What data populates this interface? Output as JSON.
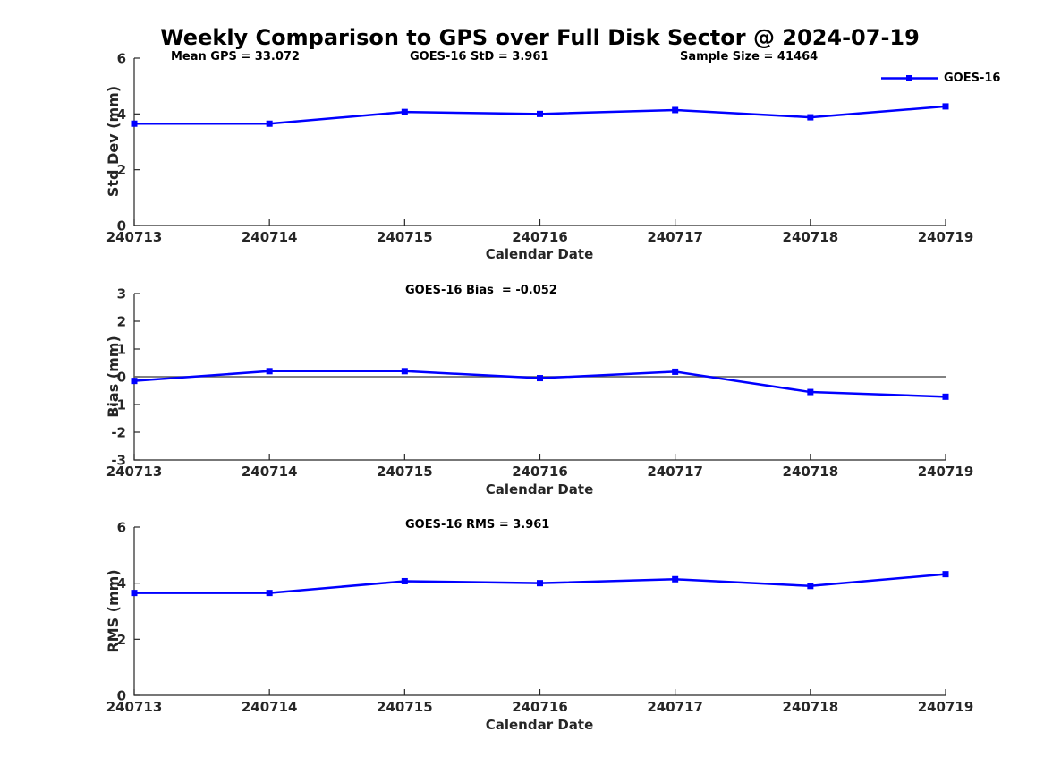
{
  "figure": {
    "title": "Weekly Comparison to GPS over Full Disk Sector @ 2024-07-19",
    "legend": {
      "label": "GOES-16",
      "position": "top-right"
    },
    "colors": {
      "line": "#0000ff",
      "axis": "#262626",
      "zero_line": "#595959",
      "background": "#ffffff"
    }
  },
  "chart_data": [
    {
      "type": "line",
      "categories": [
        "240713",
        "240714",
        "240715",
        "240716",
        "240717",
        "240718",
        "240719"
      ],
      "series": [
        {
          "name": "GOES-16",
          "values": [
            3.65,
            3.65,
            4.07,
            4.0,
            4.14,
            3.88,
            4.27
          ]
        }
      ],
      "annotations": [
        "Mean GPS = 33.072",
        "GOES-16 StD = 3.961",
        "Sample Size = 41464"
      ],
      "xlabel": "Calendar Date",
      "ylabel": "Std Dev (mm)",
      "ylim": [
        0,
        6
      ],
      "yticks": [
        6,
        4,
        2,
        0
      ],
      "grid": false,
      "zero_line": false
    },
    {
      "type": "line",
      "categories": [
        "240713",
        "240714",
        "240715",
        "240716",
        "240717",
        "240718",
        "240719"
      ],
      "series": [
        {
          "name": "GOES-16",
          "values": [
            -0.15,
            0.2,
            0.2,
            -0.05,
            0.18,
            -0.55,
            -0.72
          ]
        }
      ],
      "annotations": [
        "GOES-16 Bias  = -0.052"
      ],
      "xlabel": "Calendar Date",
      "ylabel": "Bias (mm)",
      "ylim": [
        -3,
        3
      ],
      "yticks": [
        3,
        2,
        1,
        0,
        -1,
        -2,
        -3
      ],
      "grid": false,
      "zero_line": true
    },
    {
      "type": "line",
      "categories": [
        "240713",
        "240714",
        "240715",
        "240716",
        "240717",
        "240718",
        "240719"
      ],
      "series": [
        {
          "name": "GOES-16",
          "values": [
            3.65,
            3.65,
            4.07,
            4.0,
            4.14,
            3.9,
            4.32
          ]
        }
      ],
      "annotations": [
        "GOES-16 RMS = 3.961"
      ],
      "xlabel": "Calendar Date",
      "ylabel": "RMS (mm)",
      "ylim": [
        0,
        6
      ],
      "yticks": [
        6,
        4,
        2,
        0
      ],
      "grid": false,
      "zero_line": false
    }
  ]
}
